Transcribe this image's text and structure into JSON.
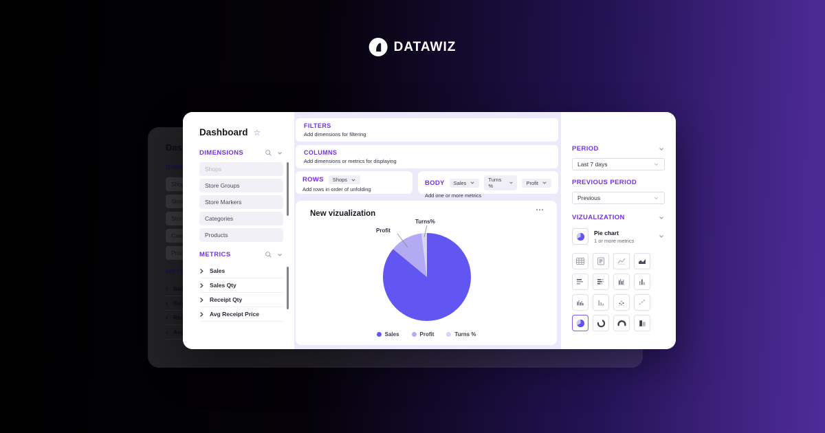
{
  "logo": {
    "text": "DATAWIZ"
  },
  "icons": {
    "star": "☆",
    "more": "⋯"
  },
  "dashboard": {
    "title": "Dashboard",
    "sidebar": {
      "dimensions": {
        "label": "DIMENSIONS",
        "items": [
          "Shops",
          "Store Groups",
          "Store Markers",
          "Categories",
          "Products"
        ]
      },
      "metrics": {
        "label": "METRICS",
        "items": [
          "Sales",
          "Sales Qty",
          "Receipt Qty",
          "Avg Receipt Price"
        ]
      }
    },
    "builder": {
      "filters": {
        "label": "FILTERS",
        "hint": "Add dimensions for filtering"
      },
      "columns": {
        "label": "COLUMNS",
        "hint": "Add dimensions or metrics for displaying"
      },
      "rows": {
        "label": "ROWS",
        "hint": "Add rows in order of unfolding",
        "chips": [
          "Shops"
        ]
      },
      "body": {
        "label": "BODY",
        "hint": "Add one or more metrics",
        "chips": [
          "Sales",
          "Turns %",
          "Profit"
        ]
      }
    },
    "settings": {
      "period": {
        "label": "PERIOD",
        "value": "Last 7 days"
      },
      "previous_period": {
        "label": "PREVIOUS PERIOD",
        "value": "Previous"
      },
      "visualization": {
        "label": "VIZUALIZATION",
        "selected_name": "Pie chart",
        "selected_hint": "1 or more metrics",
        "types": [
          "table",
          "summary",
          "line-chart",
          "area-chart",
          "horizontal-bar",
          "stacked-horizontal-bar",
          "grouped-column",
          "column",
          "column-clustered",
          "column-small",
          "scatter",
          "scatter-trend",
          "pie",
          "donut",
          "gauge",
          "stacked-bar"
        ]
      }
    }
  },
  "chart_data": {
    "type": "pie",
    "title": "New vizualization",
    "labels": [
      "Sales",
      "Profit",
      "Turns %"
    ],
    "values": [
      86,
      12,
      2
    ],
    "colors": [
      "#6156f2",
      "#b4aaf4",
      "#d9d3fb"
    ],
    "legend_position": "bottom",
    "callouts": {
      "profit": "Profit",
      "turns": "Turns%"
    }
  },
  "colors": {
    "accent": "#7430e8",
    "background_purple": "#4f2c9a",
    "card_lavender": "#ECE9FA"
  }
}
